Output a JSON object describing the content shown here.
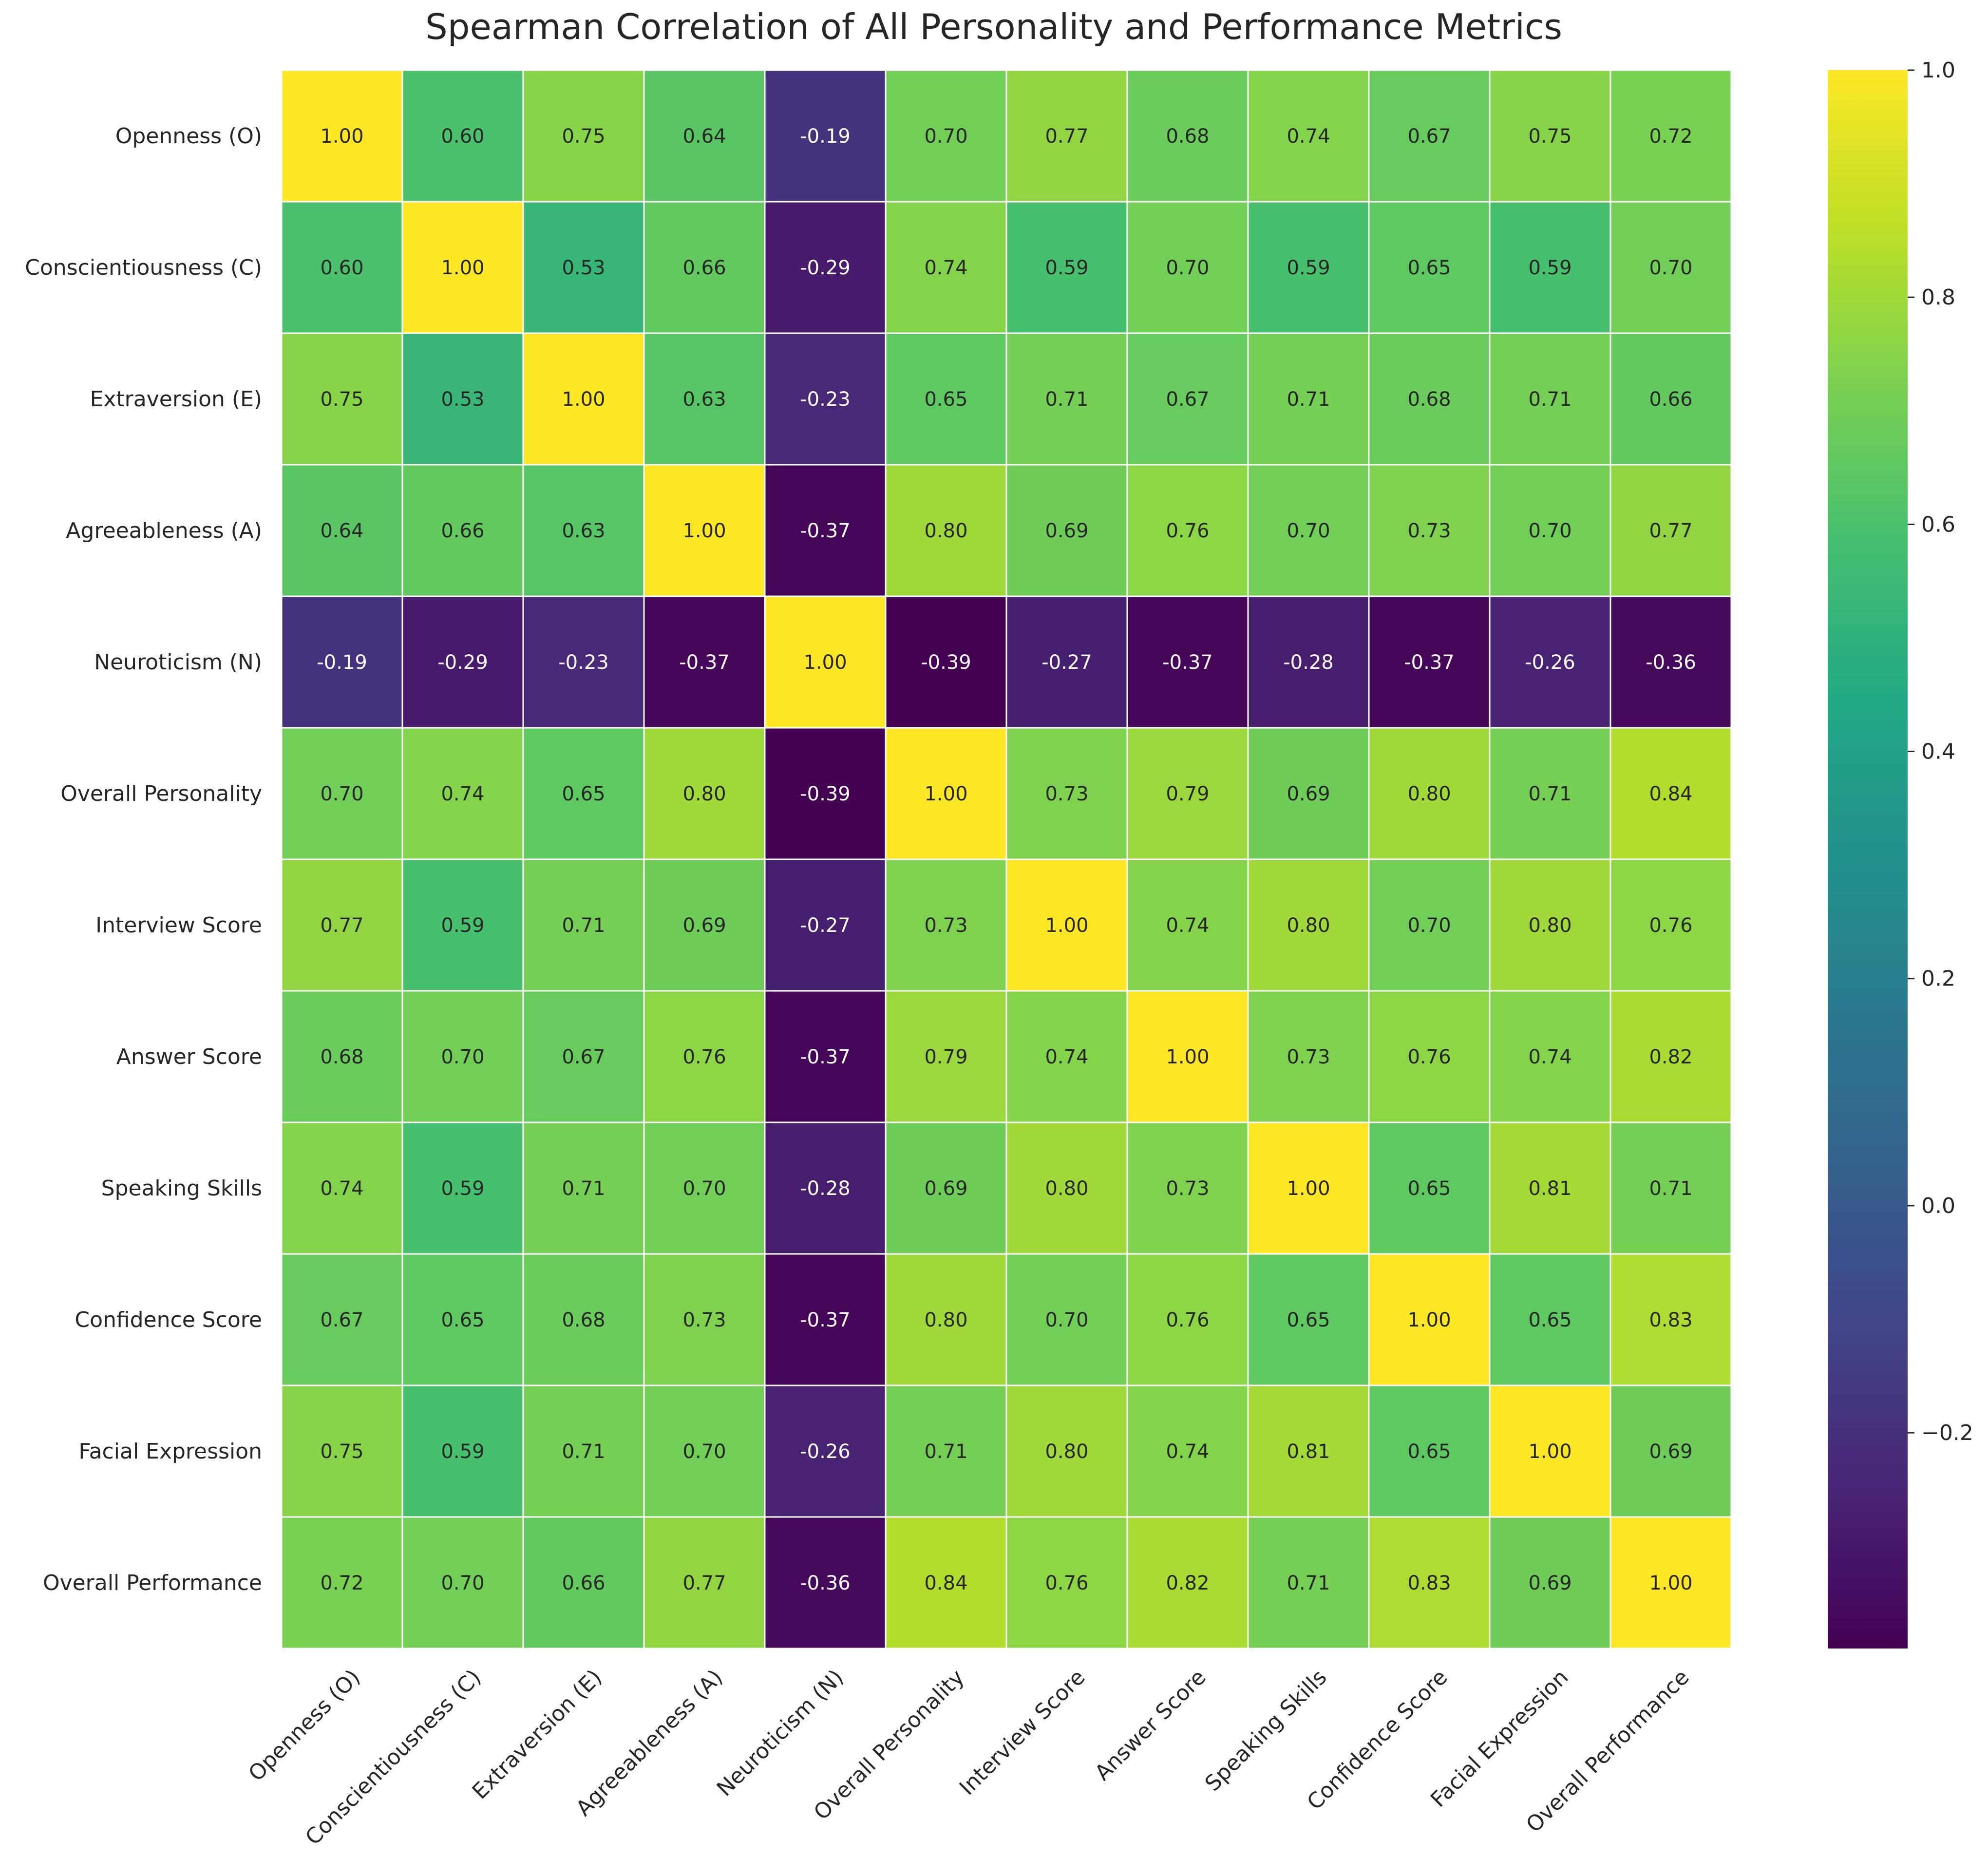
{
  "chart_data": {
    "type": "heatmap",
    "title": "Spearman Correlation of All Personality and Performance Metrics",
    "xlabel": "",
    "ylabel": "",
    "colormap": "viridis",
    "value_format": "0.00",
    "row_labels": [
      "Openness (O)",
      "Conscientiousness (C)",
      "Extraversion (E)",
      "Agreeableness (A)",
      "Neuroticism (N)",
      "Overall Personality",
      "Interview Score",
      "Answer Score",
      "Speaking Skills",
      "Confidence Score",
      "Facial Expression",
      "Overall Performance"
    ],
    "column_labels": [
      "Openness (O)",
      "Conscientiousness (C)",
      "Extraversion (E)",
      "Agreeableness (A)",
      "Neuroticism (N)",
      "Overall Personality",
      "Interview Score",
      "Answer Score",
      "Speaking Skills",
      "Confidence Score",
      "Facial Expression",
      "Overall Performance"
    ],
    "values": [
      [
        1.0,
        0.6,
        0.75,
        0.64,
        -0.19,
        0.7,
        0.77,
        0.68,
        0.74,
        0.67,
        0.75,
        0.72
      ],
      [
        0.6,
        1.0,
        0.53,
        0.66,
        -0.29,
        0.74,
        0.59,
        0.7,
        0.59,
        0.65,
        0.59,
        0.7
      ],
      [
        0.75,
        0.53,
        1.0,
        0.63,
        -0.23,
        0.65,
        0.71,
        0.67,
        0.71,
        0.68,
        0.71,
        0.66
      ],
      [
        0.64,
        0.66,
        0.63,
        1.0,
        -0.37,
        0.8,
        0.69,
        0.76,
        0.7,
        0.73,
        0.7,
        0.77
      ],
      [
        -0.19,
        -0.29,
        -0.23,
        -0.37,
        1.0,
        -0.39,
        -0.27,
        -0.37,
        -0.28,
        -0.37,
        -0.26,
        -0.36
      ],
      [
        0.7,
        0.74,
        0.65,
        0.8,
        -0.39,
        1.0,
        0.73,
        0.79,
        0.69,
        0.8,
        0.71,
        0.84
      ],
      [
        0.77,
        0.59,
        0.71,
        0.69,
        -0.27,
        0.73,
        1.0,
        0.74,
        0.8,
        0.7,
        0.8,
        0.76
      ],
      [
        0.68,
        0.7,
        0.67,
        0.76,
        -0.37,
        0.79,
        0.74,
        1.0,
        0.73,
        0.76,
        0.74,
        0.82
      ],
      [
        0.74,
        0.59,
        0.71,
        0.7,
        -0.28,
        0.69,
        0.8,
        0.73,
        1.0,
        0.65,
        0.81,
        0.71
      ],
      [
        0.67,
        0.65,
        0.68,
        0.73,
        -0.37,
        0.8,
        0.7,
        0.76,
        0.65,
        1.0,
        0.65,
        0.83
      ],
      [
        0.75,
        0.59,
        0.71,
        0.7,
        -0.26,
        0.71,
        0.8,
        0.74,
        0.81,
        0.65,
        1.0,
        0.69
      ],
      [
        0.72,
        0.7,
        0.66,
        0.77,
        -0.36,
        0.84,
        0.76,
        0.82,
        0.71,
        0.83,
        0.69,
        1.0
      ]
    ],
    "colorbar": {
      "vmin": -0.39,
      "vmax": 1.0,
      "ticks": [
        -0.2,
        0.0,
        0.2,
        0.4,
        0.6,
        0.8,
        1.0
      ],
      "tick_labels": [
        "−0.2",
        "0.0",
        "0.2",
        "0.4",
        "0.6",
        "0.8",
        "1.0"
      ]
    },
    "colors": {
      "cell_border": "#ffffff",
      "text_dark": "#262626",
      "text_light": "#ffffff"
    }
  }
}
